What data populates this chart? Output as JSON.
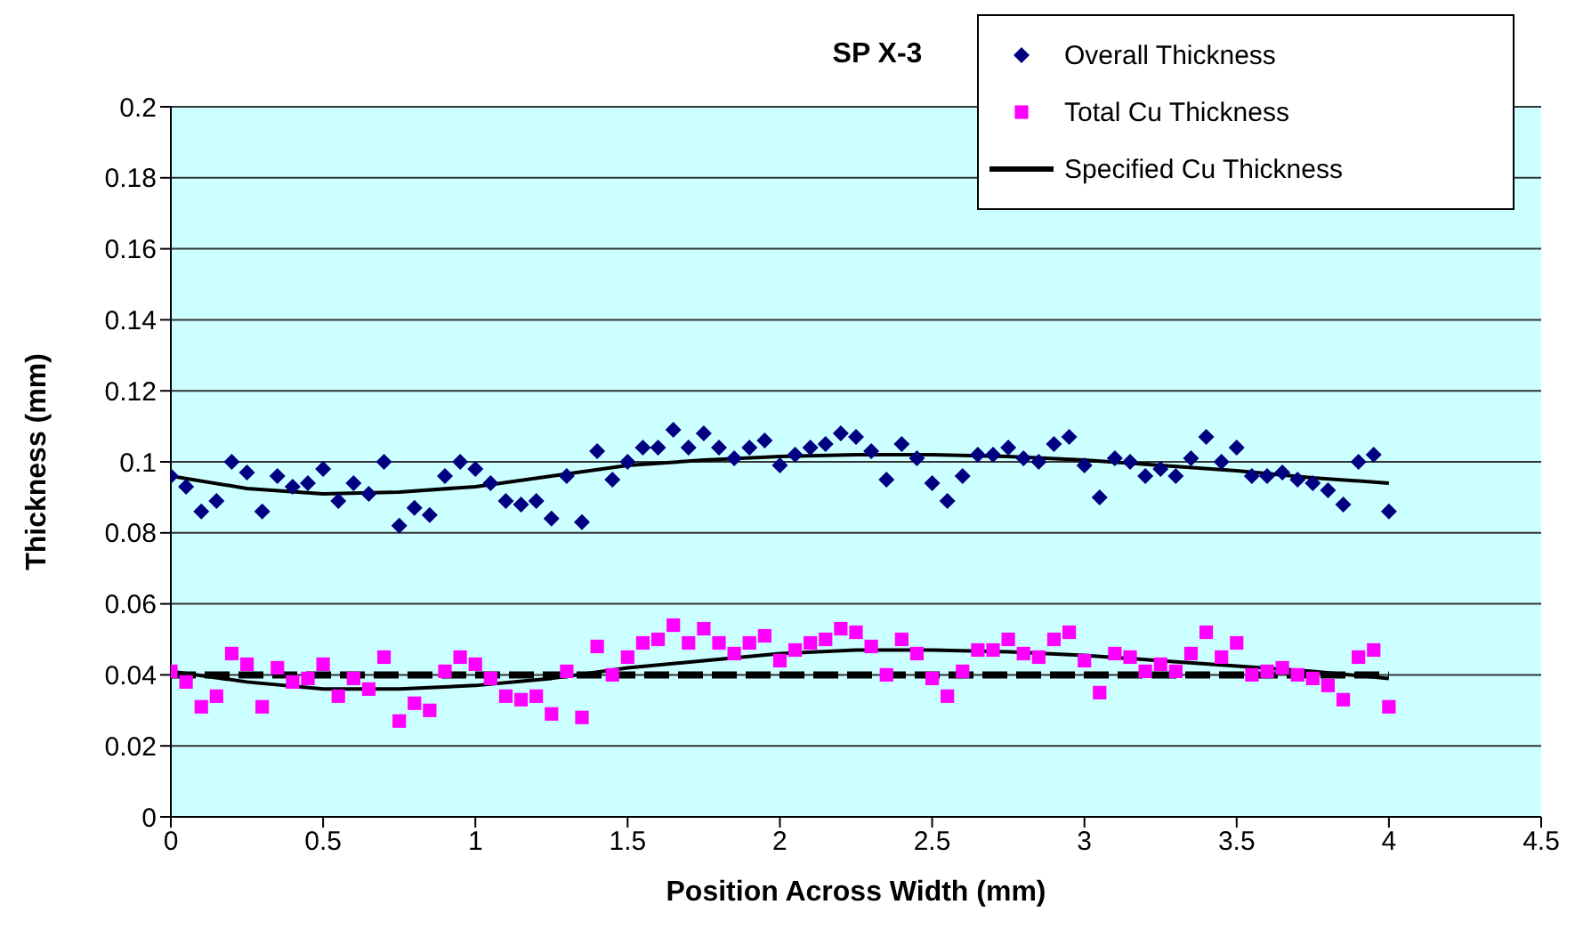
{
  "chart_data": {
    "type": "scatter",
    "title": "SP X-3",
    "xlabel": "Position Across Width (mm)",
    "ylabel": "Thickness (mm)",
    "xlim": [
      0,
      4.5
    ],
    "xticks": [
      0,
      0.5,
      1,
      1.5,
      2,
      2.5,
      3,
      3.5,
      4,
      4.5
    ],
    "ylim": [
      0,
      0.2
    ],
    "yticks": [
      0,
      0.02,
      0.04,
      0.06,
      0.08,
      0.1,
      0.12,
      0.14,
      0.16,
      0.18,
      0.2
    ],
    "grid": "y",
    "legend": "top right",
    "x": [
      0,
      0.05,
      0.1,
      0.15,
      0.2,
      0.25,
      0.3,
      0.35,
      0.4,
      0.45,
      0.5,
      0.55,
      0.6,
      0.65,
      0.7,
      0.75,
      0.8,
      0.85,
      0.9,
      0.95,
      1,
      1.05,
      1.1,
      1.15,
      1.2,
      1.25,
      1.3,
      1.35,
      1.4,
      1.45,
      1.5,
      1.55,
      1.6,
      1.65,
      1.7,
      1.75,
      1.8,
      1.85,
      1.9,
      1.95,
      2,
      2.05,
      2.1,
      2.15,
      2.2,
      2.25,
      2.3,
      2.35,
      2.4,
      2.45,
      2.5,
      2.55,
      2.6,
      2.65,
      2.7,
      2.75,
      2.8,
      2.85,
      2.9,
      2.95,
      3,
      3.05,
      3.1,
      3.15,
      3.2,
      3.25,
      3.3,
      3.35,
      3.4,
      3.45,
      3.5,
      3.55,
      3.6,
      3.65,
      3.7,
      3.75,
      3.8,
      3.85,
      3.9,
      3.95,
      4
    ],
    "series": [
      {
        "name": "Overall Thickness",
        "marker": "diamond",
        "color": "#000080",
        "values": [
          0.096,
          0.093,
          0.086,
          0.089,
          0.1,
          0.097,
          0.086,
          0.096,
          0.093,
          0.094,
          0.098,
          0.089,
          0.094,
          0.091,
          0.1,
          0.082,
          0.087,
          0.085,
          0.096,
          0.1,
          0.098,
          0.094,
          0.089,
          0.088,
          0.089,
          0.084,
          0.096,
          0.083,
          0.103,
          0.095,
          0.1,
          0.104,
          0.104,
          0.109,
          0.104,
          0.108,
          0.104,
          0.101,
          0.104,
          0.106,
          0.099,
          0.102,
          0.104,
          0.105,
          0.108,
          0.107,
          0.103,
          0.095,
          0.105,
          0.101,
          0.094,
          0.089,
          0.096,
          0.102,
          0.102,
          0.104,
          0.101,
          0.1,
          0.105,
          0.107,
          0.099,
          0.09,
          0.101,
          0.1,
          0.096,
          0.098,
          0.096,
          0.101,
          0.107,
          0.1,
          0.104,
          0.096,
          0.096,
          0.097,
          0.095,
          0.094,
          0.092,
          0.088,
          0.1,
          0.102,
          0.086
        ]
      },
      {
        "name": "Total Cu Thickness",
        "marker": "square",
        "color": "#ff00ff",
        "values": [
          0.041,
          0.038,
          0.031,
          0.034,
          0.046,
          0.043,
          0.031,
          0.042,
          0.038,
          0.039,
          0.043,
          0.034,
          0.039,
          0.036,
          0.045,
          0.027,
          0.032,
          0.03,
          0.041,
          0.045,
          0.043,
          0.039,
          0.034,
          0.033,
          0.034,
          0.029,
          0.041,
          0.028,
          0.048,
          0.04,
          0.045,
          0.049,
          0.05,
          0.054,
          0.049,
          0.053,
          0.049,
          0.046,
          0.049,
          0.051,
          0.044,
          0.047,
          0.049,
          0.05,
          0.053,
          0.052,
          0.048,
          0.04,
          0.05,
          0.046,
          0.039,
          0.034,
          0.041,
          0.047,
          0.047,
          0.05,
          0.046,
          0.045,
          0.05,
          0.052,
          0.044,
          0.035,
          0.046,
          0.045,
          0.041,
          0.043,
          0.041,
          0.046,
          0.052,
          0.045,
          0.049,
          0.04,
          0.041,
          0.042,
          0.04,
          0.039,
          0.037,
          0.033,
          0.045,
          0.047,
          0.031
        ]
      },
      {
        "name": "Specified Cu Thickness",
        "type": "line",
        "marker": "none",
        "line_style": "dashed",
        "color": "#000000",
        "x": [
          0,
          4
        ],
        "values": [
          0.04,
          0.04
        ]
      },
      {
        "type": "line",
        "marker": "none",
        "line_style": "solid",
        "color": "#000000",
        "x": [
          0,
          0.25,
          0.5,
          0.75,
          1,
          1.25,
          1.5,
          1.75,
          2,
          2.25,
          2.5,
          2.75,
          3,
          3.25,
          3.5,
          3.75,
          4
        ],
        "values": [
          0.096,
          0.0925,
          0.091,
          0.0915,
          0.093,
          0.096,
          0.099,
          0.1005,
          0.1015,
          0.102,
          0.102,
          0.1015,
          0.1005,
          0.099,
          0.0975,
          0.0955,
          0.094
        ]
      },
      {
        "type": "line",
        "marker": "none",
        "line_style": "solid",
        "color": "#000000",
        "x": [
          0,
          0.25,
          0.5,
          0.75,
          1,
          1.25,
          1.5,
          1.75,
          2,
          2.25,
          2.5,
          2.75,
          3,
          3.25,
          3.5,
          3.75,
          4
        ],
        "values": [
          0.041,
          0.038,
          0.036,
          0.036,
          0.037,
          0.039,
          0.042,
          0.044,
          0.046,
          0.047,
          0.047,
          0.0465,
          0.0455,
          0.044,
          0.0425,
          0.041,
          0.039
        ]
      }
    ]
  }
}
